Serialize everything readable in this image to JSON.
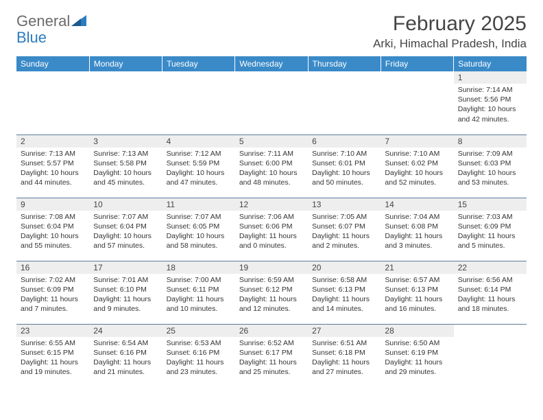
{
  "logo": {
    "text1": "General",
    "text2": "Blue"
  },
  "title": "February 2025",
  "location": "Arki, Himachal Pradesh, India",
  "colors": {
    "header_bg": "#3a8ac8",
    "daynum_bg": "#eeeeee",
    "rule": "#5a7a9a",
    "logo_accent": "#2b7bbf"
  },
  "weekdays": [
    "Sunday",
    "Monday",
    "Tuesday",
    "Wednesday",
    "Thursday",
    "Friday",
    "Saturday"
  ],
  "weeks": [
    [
      null,
      null,
      null,
      null,
      null,
      null,
      {
        "n": "1",
        "sunrise": "7:14 AM",
        "sunset": "5:56 PM",
        "dl_h": 10,
        "dl_m": 42
      }
    ],
    [
      {
        "n": "2",
        "sunrise": "7:13 AM",
        "sunset": "5:57 PM",
        "dl_h": 10,
        "dl_m": 44
      },
      {
        "n": "3",
        "sunrise": "7:13 AM",
        "sunset": "5:58 PM",
        "dl_h": 10,
        "dl_m": 45
      },
      {
        "n": "4",
        "sunrise": "7:12 AM",
        "sunset": "5:59 PM",
        "dl_h": 10,
        "dl_m": 47
      },
      {
        "n": "5",
        "sunrise": "7:11 AM",
        "sunset": "6:00 PM",
        "dl_h": 10,
        "dl_m": 48
      },
      {
        "n": "6",
        "sunrise": "7:10 AM",
        "sunset": "6:01 PM",
        "dl_h": 10,
        "dl_m": 50
      },
      {
        "n": "7",
        "sunrise": "7:10 AM",
        "sunset": "6:02 PM",
        "dl_h": 10,
        "dl_m": 52
      },
      {
        "n": "8",
        "sunrise": "7:09 AM",
        "sunset": "6:03 PM",
        "dl_h": 10,
        "dl_m": 53
      }
    ],
    [
      {
        "n": "9",
        "sunrise": "7:08 AM",
        "sunset": "6:04 PM",
        "dl_h": 10,
        "dl_m": 55
      },
      {
        "n": "10",
        "sunrise": "7:07 AM",
        "sunset": "6:04 PM",
        "dl_h": 10,
        "dl_m": 57
      },
      {
        "n": "11",
        "sunrise": "7:07 AM",
        "sunset": "6:05 PM",
        "dl_h": 10,
        "dl_m": 58
      },
      {
        "n": "12",
        "sunrise": "7:06 AM",
        "sunset": "6:06 PM",
        "dl_h": 11,
        "dl_m": 0
      },
      {
        "n": "13",
        "sunrise": "7:05 AM",
        "sunset": "6:07 PM",
        "dl_h": 11,
        "dl_m": 2
      },
      {
        "n": "14",
        "sunrise": "7:04 AM",
        "sunset": "6:08 PM",
        "dl_h": 11,
        "dl_m": 3
      },
      {
        "n": "15",
        "sunrise": "7:03 AM",
        "sunset": "6:09 PM",
        "dl_h": 11,
        "dl_m": 5
      }
    ],
    [
      {
        "n": "16",
        "sunrise": "7:02 AM",
        "sunset": "6:09 PM",
        "dl_h": 11,
        "dl_m": 7
      },
      {
        "n": "17",
        "sunrise": "7:01 AM",
        "sunset": "6:10 PM",
        "dl_h": 11,
        "dl_m": 9
      },
      {
        "n": "18",
        "sunrise": "7:00 AM",
        "sunset": "6:11 PM",
        "dl_h": 11,
        "dl_m": 10
      },
      {
        "n": "19",
        "sunrise": "6:59 AM",
        "sunset": "6:12 PM",
        "dl_h": 11,
        "dl_m": 12
      },
      {
        "n": "20",
        "sunrise": "6:58 AM",
        "sunset": "6:13 PM",
        "dl_h": 11,
        "dl_m": 14
      },
      {
        "n": "21",
        "sunrise": "6:57 AM",
        "sunset": "6:13 PM",
        "dl_h": 11,
        "dl_m": 16
      },
      {
        "n": "22",
        "sunrise": "6:56 AM",
        "sunset": "6:14 PM",
        "dl_h": 11,
        "dl_m": 18
      }
    ],
    [
      {
        "n": "23",
        "sunrise": "6:55 AM",
        "sunset": "6:15 PM",
        "dl_h": 11,
        "dl_m": 19
      },
      {
        "n": "24",
        "sunrise": "6:54 AM",
        "sunset": "6:16 PM",
        "dl_h": 11,
        "dl_m": 21
      },
      {
        "n": "25",
        "sunrise": "6:53 AM",
        "sunset": "6:16 PM",
        "dl_h": 11,
        "dl_m": 23
      },
      {
        "n": "26",
        "sunrise": "6:52 AM",
        "sunset": "6:17 PM",
        "dl_h": 11,
        "dl_m": 25
      },
      {
        "n": "27",
        "sunrise": "6:51 AM",
        "sunset": "6:18 PM",
        "dl_h": 11,
        "dl_m": 27
      },
      {
        "n": "28",
        "sunrise": "6:50 AM",
        "sunset": "6:19 PM",
        "dl_h": 11,
        "dl_m": 29
      },
      null
    ]
  ],
  "labels": {
    "sunrise": "Sunrise:",
    "sunset": "Sunset:",
    "daylight": "Daylight:"
  }
}
